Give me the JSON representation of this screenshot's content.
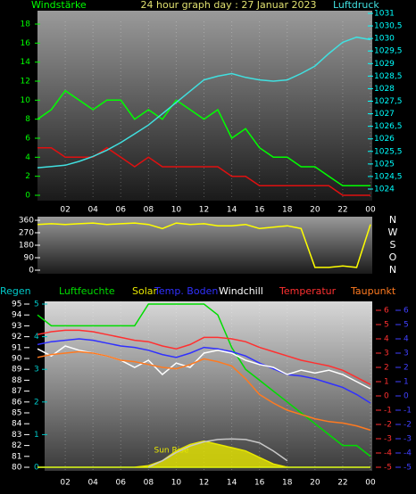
{
  "chart_data": [
    {
      "type": "line",
      "title": "24 hour graph day : 27 Januar 2023",
      "x": [
        0,
        1,
        2,
        3,
        4,
        5,
        6,
        7,
        8,
        9,
        10,
        11,
        12,
        13,
        14,
        15,
        16,
        17,
        18,
        19,
        20,
        21,
        22,
        23,
        24
      ],
      "xlim": [
        0,
        24
      ],
      "xticks": [
        {
          "value": 2,
          "label": "02"
        },
        {
          "value": 4,
          "label": "04"
        },
        {
          "value": 6,
          "label": "06"
        },
        {
          "value": 8,
          "label": "08"
        },
        10,
        12,
        14,
        16,
        18,
        20,
        22,
        {
          "value": 24,
          "label": "00"
        }
      ],
      "ylim": [
        0,
        18
      ],
      "yticks": [
        0,
        2,
        4,
        6,
        8,
        10,
        12,
        14,
        16,
        18
      ],
      "y2lim": [
        1024,
        1031
      ],
      "y2ticks": [
        1024,
        {
          "value": 1024.5,
          "label": "1024,5"
        },
        1025,
        {
          "value": 1025.5,
          "label": "1025,5"
        },
        1026,
        {
          "value": 1026.5,
          "label": "1026,5"
        },
        1027,
        {
          "value": 1027.5,
          "label": "1027,5"
        },
        1028,
        {
          "value": 1028.5,
          "label": "1028,5"
        },
        1029,
        {
          "value": 1029.5,
          "label": "1029,5"
        },
        1030,
        {
          "value": 1030.5,
          "label": "1030,5"
        },
        1031
      ],
      "series": [
        {
          "name": "Windstärke",
          "color": "#00ff00",
          "values": [
            8,
            9,
            11,
            10,
            9,
            10,
            10,
            8,
            9,
            8,
            10,
            9,
            8,
            9,
            6,
            7,
            5,
            4,
            4,
            3,
            3,
            2,
            1,
            1,
            1
          ]
        },
        {
          "color": "#e01010",
          "values": [
            5,
            5,
            4,
            4,
            4,
            5,
            4,
            3,
            4,
            3,
            3,
            3,
            3,
            3,
            2,
            2,
            1,
            1,
            1,
            1,
            1,
            1,
            0,
            0,
            0
          ]
        },
        {
          "name": "Luftdruck",
          "color": "#40e0e0",
          "axis": "y2",
          "values": [
            1024.85,
            1024.9,
            1024.95,
            1025.1,
            1025.3,
            1025.55,
            1025.85,
            1026.2,
            1026.55,
            1027,
            1027.45,
            1027.9,
            1028.35,
            1028.5,
            1028.6,
            1028.45,
            1028.35,
            1028.3,
            1028.35,
            1028.6,
            1028.9,
            1029.4,
            1029.85,
            1030.05,
            1029.95
          ]
        }
      ]
    },
    {
      "type": "line",
      "x": [
        0,
        1,
        2,
        3,
        4,
        5,
        6,
        7,
        8,
        9,
        10,
        11,
        12,
        13,
        14,
        15,
        16,
        17,
        18,
        19,
        20,
        21,
        22,
        23,
        24
      ],
      "xlim": [
        0,
        24
      ],
      "ylim": [
        0,
        360
      ],
      "yticks": [
        0,
        90,
        180,
        270,
        360
      ],
      "direction_labels": [
        "N",
        "O",
        "S",
        "W",
        "N"
      ],
      "series": [
        {
          "color": "#ffff00",
          "values": [
            330,
            335,
            330,
            335,
            340,
            330,
            335,
            340,
            330,
            300,
            340,
            330,
            335,
            320,
            320,
            330,
            300,
            310,
            320,
            300,
            20,
            20,
            30,
            20,
            330
          ]
        }
      ]
    },
    {
      "type": "line",
      "annotation": "Sun Rise",
      "x": [
        0,
        1,
        2,
        3,
        4,
        5,
        6,
        7,
        8,
        9,
        10,
        11,
        12,
        13,
        14,
        15,
        16,
        17,
        18,
        19,
        20,
        21,
        22,
        23,
        24
      ],
      "xlim": [
        0,
        24
      ],
      "xticks": [
        {
          "value": 2,
          "label": "02"
        },
        {
          "value": 4,
          "label": "04"
        },
        {
          "value": 6,
          "label": "06"
        },
        {
          "value": 8,
          "label": "08"
        },
        10,
        12,
        14,
        16,
        18,
        20,
        22,
        {
          "value": 24,
          "label": "00"
        }
      ],
      "ylim": [
        80,
        95
      ],
      "yticks": [
        80,
        81,
        82,
        83,
        84,
        85,
        86,
        87,
        88,
        89,
        90,
        91,
        92,
        93,
        94,
        95
      ],
      "y2lim": [
        -5,
        6
      ],
      "y2ticks": [
        -5,
        -4,
        -3,
        -2,
        -1,
        0,
        1,
        2,
        3,
        4,
        5,
        6
      ],
      "y3lim": [
        0,
        5
      ],
      "y3ticks": [
        0,
        1,
        2,
        3,
        4,
        5
      ],
      "y4lim": [
        -5,
        6
      ],
      "y4ticks": [
        -5,
        -4,
        -3,
        -2,
        -1,
        0,
        1,
        2,
        3,
        4,
        5,
        6
      ],
      "series": [
        {
          "name": "Regen",
          "color": "#00c8c8",
          "axis": "y3",
          "values": [
            0,
            0,
            0,
            0,
            0,
            0,
            0,
            0,
            0,
            0,
            0,
            0,
            0,
            0,
            0,
            0,
            0,
            0,
            0,
            0,
            0,
            0,
            0,
            0,
            0
          ]
        },
        {
          "name": "Luftfeuchte",
          "color": "#00dd00",
          "values": [
            94,
            93,
            93,
            93,
            93,
            93,
            93,
            93,
            95,
            95,
            95,
            95,
            95,
            94,
            91,
            89,
            88,
            87,
            86,
            85,
            84,
            83,
            82,
            82,
            81
          ]
        },
        {
          "name": "Solar",
          "color": "#e8e800",
          "axis": "y3",
          "area": true,
          "values": [
            0,
            0,
            0,
            0,
            0,
            0,
            0,
            0,
            0.05,
            0.2,
            0.5,
            0.7,
            0.8,
            0.7,
            0.6,
            0.5,
            0.3,
            0.1,
            0,
            0,
            0,
            0,
            0,
            0,
            0
          ]
        },
        {
          "name": "Temp. Boden",
          "color": "#3030ff",
          "axis": "y4",
          "values": [
            3.6,
            3.8,
            3.9,
            4.0,
            3.9,
            3.7,
            3.5,
            3.4,
            3.2,
            2.9,
            2.7,
            3.0,
            3.4,
            3.3,
            3.1,
            2.8,
            2.3,
            1.9,
            1.5,
            1.4,
            1.2,
            0.9,
            0.6,
            0.1,
            -0.5
          ]
        },
        {
          "name": "Windchill",
          "color": "#ffffff",
          "axis": "y2",
          "values": [
            3.3,
            2.8,
            3.5,
            3.2,
            3.0,
            2.8,
            2.5,
            2.0,
            2.5,
            1.5,
            2.3,
            2.0,
            3.0,
            3.2,
            3.0,
            2.5,
            2.2,
            2.0,
            1.5,
            1.8,
            1.6,
            1.8,
            1.5,
            1.0,
            0.5
          ]
        },
        {
          "name": "Temperatur",
          "color": "#ff3030",
          "axis": "y2",
          "values": [
            4.3,
            4.5,
            4.6,
            4.6,
            4.5,
            4.3,
            4.1,
            3.9,
            3.8,
            3.5,
            3.3,
            3.6,
            4.1,
            4.1,
            4.0,
            3.8,
            3.4,
            3.1,
            2.8,
            2.5,
            2.3,
            2.1,
            1.8,
            1.3,
            0.8
          ]
        },
        {
          "name": "Taupunkt",
          "color": "#ff7a20",
          "axis": "y2",
          "values": [
            2.7,
            2.9,
            3.0,
            3.1,
            3.0,
            2.8,
            2.5,
            2.4,
            2.2,
            2.0,
            1.9,
            2.2,
            2.6,
            2.4,
            2.1,
            1.2,
            0.1,
            -0.5,
            -1.0,
            -1.3,
            -1.6,
            -1.8,
            -1.9,
            -2.1,
            -2.4
          ]
        },
        {
          "color": "#c8c8c8",
          "axis": "y3",
          "values": [
            null,
            null,
            null,
            null,
            null,
            null,
            null,
            null,
            0,
            0.2,
            0.45,
            0.65,
            0.78,
            0.85,
            0.87,
            0.85,
            0.75,
            0.5,
            0.2,
            null,
            null,
            null,
            null,
            null,
            null
          ]
        }
      ]
    }
  ]
}
